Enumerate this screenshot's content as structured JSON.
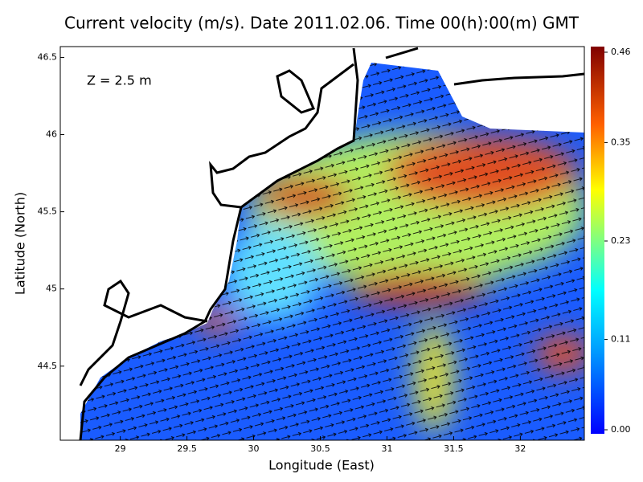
{
  "chart_data": {
    "type": "vector-map",
    "title": "Current velocity (m/s). Date 2011.02.06. Time 00(h):00(m) GMT",
    "annotation": "Z = 2.5 m",
    "x_label": "Longitude (East)",
    "y_label": "Latitude (North)",
    "xlim": [
      28.55,
      32.48
    ],
    "xticks": [
      29,
      29.5,
      30,
      30.5,
      31,
      31.5,
      32
    ],
    "ylim": [
      44.02,
      46.57
    ],
    "yticks": [
      44.5,
      45,
      45.5,
      46,
      46.5
    ],
    "colorbar": {
      "lim": [
        0,
        0.46
      ],
      "ticks": [
        {
          "value": 0,
          "label": "0.00"
        },
        0.11,
        0.23,
        0.35,
        0.46
      ]
    }
  }
}
